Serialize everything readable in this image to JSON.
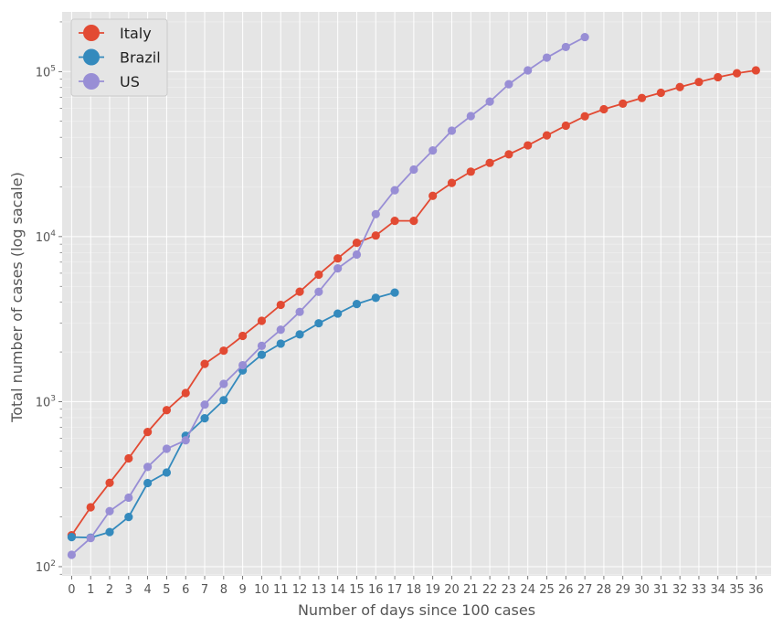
{
  "chart_data": {
    "type": "line",
    "xlabel": "Number of days since 100 cases",
    "ylabel": "Total number of cases  (log sacale)",
    "yscale": "log",
    "xlim": [
      -0.5,
      36.8
    ],
    "ylim": [
      88,
      230000
    ],
    "x_ticks": [
      0,
      1,
      2,
      3,
      4,
      5,
      6,
      7,
      8,
      9,
      10,
      11,
      12,
      13,
      14,
      15,
      16,
      17,
      18,
      19,
      20,
      21,
      22,
      23,
      24,
      25,
      26,
      27,
      28,
      29,
      30,
      31,
      32,
      33,
      34,
      35,
      36
    ],
    "y_ticks": [
      {
        "value": 100,
        "base": "10",
        "exp": "2"
      },
      {
        "value": 1000,
        "base": "10",
        "exp": "3"
      },
      {
        "value": 10000,
        "base": "10",
        "exp": "4"
      },
      {
        "value": 100000,
        "base": "10",
        "exp": "5"
      }
    ],
    "grid": true,
    "legend_position": "top-left",
    "series": [
      {
        "name": "Italy",
        "color": "#E24A33",
        "x": [
          0,
          1,
          2,
          3,
          4,
          5,
          6,
          7,
          8,
          9,
          10,
          11,
          12,
          13,
          14,
          15,
          16,
          17,
          18,
          19,
          20,
          21,
          22,
          23,
          24,
          25,
          26,
          27,
          28,
          29,
          30,
          31,
          32,
          33,
          34,
          35,
          36
        ],
        "y": [
          155,
          229,
          322,
          453,
          655,
          888,
          1128,
          1694,
          2036,
          2502,
          3089,
          3858,
          4636,
          5883,
          7375,
          9172,
          10149,
          12462,
          12462,
          17660,
          21157,
          24747,
          27980,
          31506,
          35713,
          41035,
          47021,
          53578,
          59138,
          63927,
          69176,
          74386,
          80589,
          86498,
          92472,
          97689,
          101739
        ]
      },
      {
        "name": "Brazil",
        "color": "#348ABD",
        "x": [
          0,
          1,
          2,
          3,
          4,
          5,
          6,
          7,
          8,
          9,
          10,
          11,
          12,
          13,
          14,
          15,
          16,
          17
        ],
        "y": [
          151,
          150,
          162,
          200,
          321,
          372,
          621,
          793,
          1021,
          1546,
          1924,
          2247,
          2554,
          2985,
          3417,
          3904,
          4256,
          4579
        ]
      },
      {
        "name": "US",
        "color": "#988ED5",
        "x": [
          0,
          1,
          2,
          3,
          4,
          5,
          6,
          7,
          8,
          9,
          10,
          11,
          12,
          13,
          14,
          15,
          16,
          17,
          18,
          19,
          20,
          21,
          22,
          23,
          24,
          25,
          26,
          27
        ],
        "y": [
          118,
          149,
          217,
          262,
          402,
          518,
          583,
          959,
          1281,
          1663,
          2179,
          2726,
          3499,
          4632,
          6421,
          7786,
          13680,
          19101,
          25493,
          33276,
          43847,
          53740,
          65778,
          83836,
          101657,
          121478,
          140886,
          161807
        ]
      }
    ]
  }
}
